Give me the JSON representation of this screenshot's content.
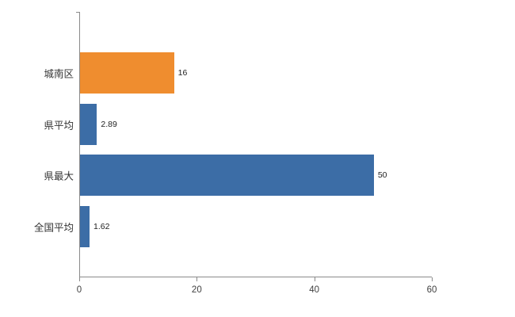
{
  "chart_data": {
    "type": "bar",
    "orientation": "horizontal",
    "title": "",
    "xlabel": "",
    "ylabel": "",
    "categories": [
      "城南区",
      "県平均",
      "県最大",
      "全国平均"
    ],
    "values": [
      16,
      2.89,
      50,
      1.62
    ],
    "value_labels": [
      "16",
      "2.89",
      "50",
      "1.62"
    ],
    "bar_colors": [
      "#ef8d2f",
      "#3c6da6",
      "#3c6da6",
      "#3c6da6"
    ],
    "xlim": [
      0,
      60
    ],
    "x_ticks": [
      0,
      20,
      40,
      60
    ],
    "grid": false,
    "legend": "none",
    "colors": {
      "axis": "#8a8a8a",
      "tick_text": "#404040",
      "category_text": "#333333",
      "value_text": "#222222",
      "background": "#ffffff"
    }
  }
}
